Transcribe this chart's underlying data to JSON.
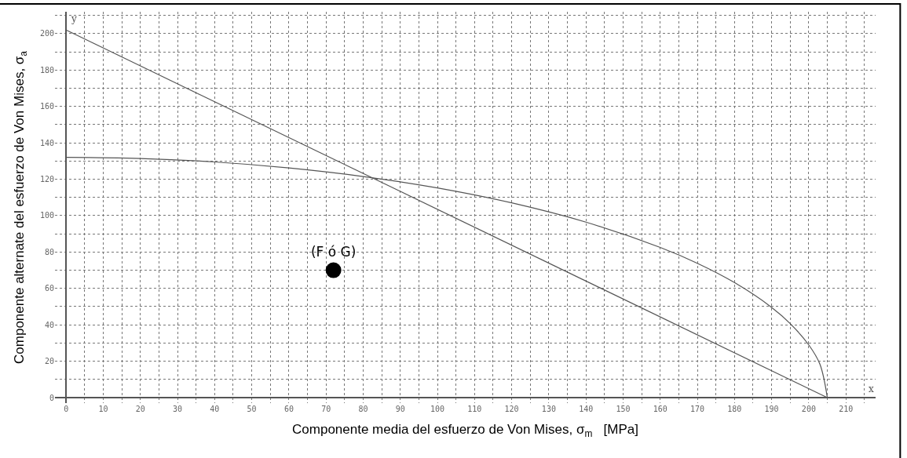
{
  "chart_data": {
    "type": "line",
    "xlabel": "Componente media del esfuerzo de Von Mises, σ$_{m}$   [MPa]",
    "ylabel": "Componente alternate del esfuerzo de Von Mises, σ$_{a}$",
    "series": [
      {
        "color": "#555555",
        "x": [
          0,
          205
        ],
        "values": [
          202,
          0
        ]
      },
      {
        "color": "#555555",
        "x": [
          0,
          20,
          40,
          60,
          80,
          100,
          120,
          140,
          160,
          170,
          180,
          190,
          195,
          200,
          203,
          205
        ],
        "values": [
          132,
          131.4,
          129.5,
          126.2,
          121.5,
          115.2,
          107.0,
          96.4,
          82.5,
          73.8,
          63.2,
          49.6,
          40.7,
          29.0,
          18.4,
          0
        ]
      },
      {
        "type": "scatter",
        "name": "(F ó G)",
        "color": "#000000",
        "x": [
          72
        ],
        "values": [
          70
        ]
      }
    ],
    "annotations": [
      "y",
      "x"
    ],
    "xlim": [
      -3,
      218
    ],
    "ylim": [
      -3,
      212
    ],
    "xticks": [
      0,
      {
        "value": 5,
        "label": null
      },
      10,
      {
        "value": 15,
        "label": null
      },
      20,
      {
        "value": 25,
        "label": null
      },
      30,
      {
        "value": 35,
        "label": null
      },
      40,
      {
        "value": 45,
        "label": null
      },
      50,
      {
        "value": 55,
        "label": null
      },
      60,
      {
        "value": 65,
        "label": null
      },
      70,
      {
        "value": 75,
        "label": null
      },
      80,
      {
        "value": 85,
        "label": null
      },
      90,
      {
        "value": 95,
        "label": null
      },
      100,
      {
        "value": 105,
        "label": null
      },
      110,
      {
        "value": 115,
        "label": null
      },
      120,
      {
        "value": 125,
        "label": null
      },
      130,
      {
        "value": 135,
        "label": null
      },
      140,
      {
        "value": 145,
        "label": null
      },
      150,
      {
        "value": 155,
        "label": null
      },
      160,
      {
        "value": 165,
        "label": null
      },
      170,
      {
        "value": 175,
        "label": null
      },
      180,
      {
        "value": 185,
        "label": null
      },
      190,
      {
        "value": 195,
        "label": null
      },
      200,
      {
        "value": 205,
        "label": null
      },
      210,
      {
        "value": 215,
        "label": null
      }
    ],
    "yticks": [
      0,
      {
        "value": 10,
        "label": null
      },
      20,
      {
        "value": 30,
        "label": null
      },
      40,
      {
        "value": 50,
        "label": null
      },
      60,
      {
        "value": 70,
        "label": null
      },
      80,
      {
        "value": 90,
        "label": null
      },
      100,
      {
        "value": 110,
        "label": null
      },
      120,
      {
        "value": 130,
        "label": null
      },
      140,
      {
        "value": 150,
        "label": null
      },
      160,
      {
        "value": 170,
        "label": null
      },
      180,
      {
        "value": 190,
        "label": null
      },
      200,
      {
        "value": 210,
        "label": null
      }
    ],
    "grid": true
  }
}
